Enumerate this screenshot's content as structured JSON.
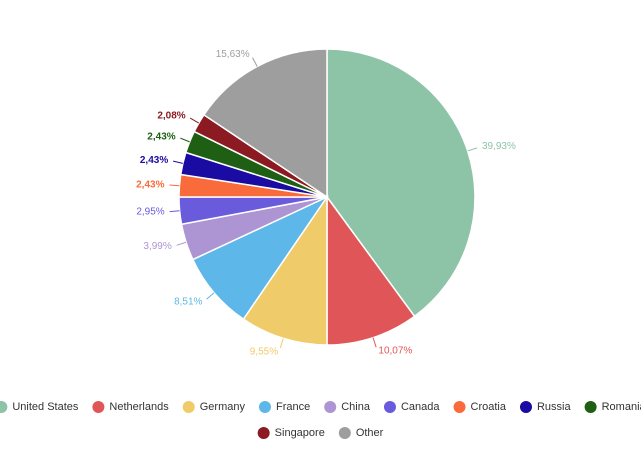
{
  "chart_data": {
    "type": "pie",
    "categories": [
      "United States",
      "Netherlands",
      "Germany",
      "France",
      "China",
      "Canada",
      "Croatia",
      "Russia",
      "Romania",
      "Singapore",
      "Other"
    ],
    "values": [
      39.93,
      10.07,
      9.55,
      8.51,
      3.99,
      2.95,
      2.43,
      2.43,
      2.43,
      2.08,
      15.63
    ],
    "value_labels": [
      "39,93%",
      "10,07%",
      "9,55%",
      "8,51%",
      "3,99%",
      "2,95%",
      "2,43%",
      "2,43%",
      "2,43%",
      "2,08%",
      "15,63%"
    ],
    "colors": [
      "#8dc3a7",
      "#e05658",
      "#f0cb69",
      "#5db7e8",
      "#ad95d3",
      "#6a5bdc",
      "#f96b3a",
      "#1a0ba3",
      "#1e5f14",
      "#8b1a22",
      "#9e9e9e"
    ],
    "legend": "bottom"
  }
}
